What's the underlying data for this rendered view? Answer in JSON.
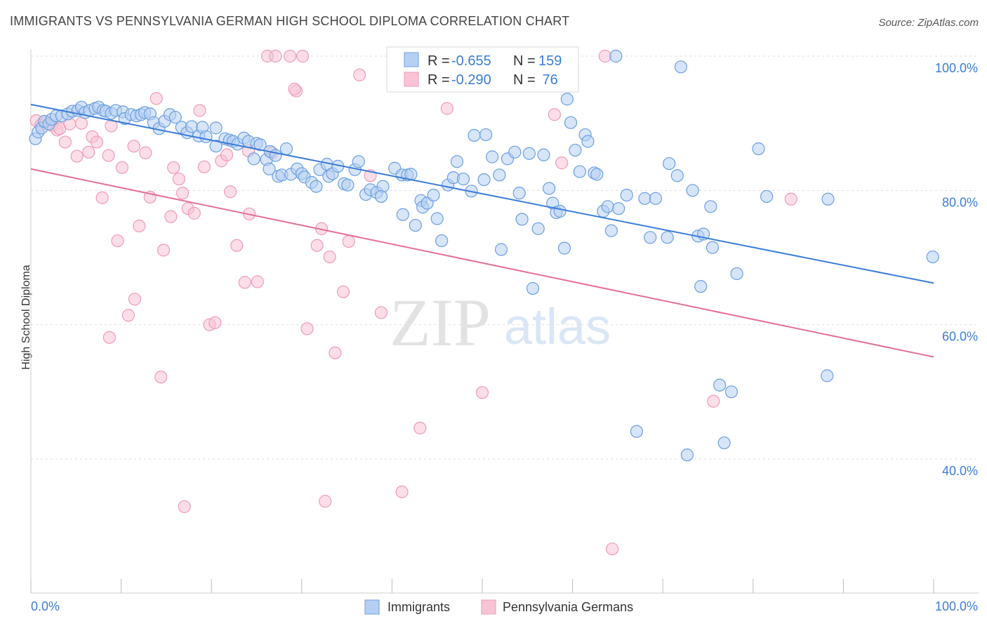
{
  "header": {
    "title": "IMMIGRANTS VS PENNSYLVANIA GERMAN HIGH SCHOOL DIPLOMA CORRELATION CHART",
    "source": "Source: ZipAtlas.com"
  },
  "watermark": {
    "zip": "ZIP",
    "atlas": "atlas"
  },
  "colors": {
    "blue": "#3b7dd8",
    "blue_fill": "#b6d0f3",
    "blue_stroke": "#6a9fe0",
    "pink": "#e46e9a",
    "pink_fill": "#f8c3d5",
    "pink_stroke": "#ee9bb8",
    "grid": "#dddddd",
    "tick_text": "#3b7dd8"
  },
  "stats": [
    {
      "r_label": "R =",
      "r_value": "-0.655",
      "n_label": "N =",
      "n_value": "159"
    },
    {
      "r_label": "R =",
      "r_value": "-0.290",
      "n_label": "N =",
      "n_value": " 76"
    }
  ],
  "chart_data": {
    "type": "scatter",
    "title": "IMMIGRANTS VS PENNSYLVANIA GERMAN HIGH SCHOOL DIPLOMA CORRELATION CHART",
    "xlabel": "",
    "ylabel": "High School Diploma",
    "xlim": [
      0,
      100
    ],
    "ylim": [
      20,
      102
    ],
    "x_tick_labels": [
      "0.0%",
      "100.0%"
    ],
    "y_ticks": [
      40,
      60,
      80,
      100
    ],
    "y_tick_labels": [
      "40.0%",
      "60.0%",
      "80.0%",
      "100.0%"
    ],
    "grid": true,
    "legend_position": "bottom-center",
    "series": [
      {
        "name": "Immigrants",
        "color": "#3b7dd8",
        "r": -0.655,
        "n": 159,
        "trend": {
          "x": [
            0,
            100
          ],
          "y": [
            92.8,
            66.2
          ]
        },
        "points": [
          [
            0.5,
            87.7
          ],
          [
            0.8,
            88.7
          ],
          [
            1.2,
            89.3
          ],
          [
            1.5,
            90.3
          ],
          [
            2,
            89.9
          ],
          [
            2.3,
            90.6
          ],
          [
            2.8,
            91.1
          ],
          [
            3.4,
            91.1
          ],
          [
            4.1,
            91.4
          ],
          [
            4.6,
            91.8
          ],
          [
            5.2,
            91.9
          ],
          [
            5.6,
            92.4
          ],
          [
            6,
            91.6
          ],
          [
            6.5,
            91.9
          ],
          [
            7.1,
            92.2
          ],
          [
            7.5,
            92.4
          ],
          [
            8,
            91.9
          ],
          [
            8.3,
            91.8
          ],
          [
            8.9,
            91.5
          ],
          [
            9.4,
            91.9
          ],
          [
            10.2,
            91.7
          ],
          [
            10.4,
            90.7
          ],
          [
            11.1,
            91.3
          ],
          [
            11.7,
            91.1
          ],
          [
            12.2,
            91.3
          ],
          [
            12.6,
            91.6
          ],
          [
            13.2,
            91.4
          ],
          [
            13.6,
            90.1
          ],
          [
            14.2,
            89.2
          ],
          [
            14.8,
            90.3
          ],
          [
            15.4,
            91.3
          ],
          [
            16,
            90.9
          ],
          [
            16.7,
            89.4
          ],
          [
            17.3,
            88.6
          ],
          [
            17.8,
            89.5
          ],
          [
            18.6,
            88.1
          ],
          [
            19,
            89.4
          ],
          [
            19.4,
            88
          ],
          [
            20.5,
            86.6
          ],
          [
            20.5,
            89.3
          ],
          [
            21.5,
            87.7
          ],
          [
            22,
            87.5
          ],
          [
            22.4,
            87.3
          ],
          [
            22.9,
            86.9
          ],
          [
            23.6,
            87.8
          ],
          [
            24.1,
            87.3
          ],
          [
            24.7,
            84.7
          ],
          [
            25,
            87
          ],
          [
            25.4,
            86.8
          ],
          [
            26.1,
            84.6
          ],
          [
            26.4,
            83.2
          ],
          [
            26.5,
            85.8
          ],
          [
            27.1,
            85.2
          ],
          [
            27.4,
            82.1
          ],
          [
            27.8,
            82.3
          ],
          [
            28.3,
            86.2
          ],
          [
            28.8,
            82.4
          ],
          [
            29.5,
            83.2
          ],
          [
            30,
            82.5
          ],
          [
            30.3,
            82
          ],
          [
            31.1,
            81.2
          ],
          [
            31.6,
            80.6
          ],
          [
            32,
            83.1
          ],
          [
            32.8,
            83.9
          ],
          [
            33,
            82.1
          ],
          [
            33.4,
            82.5
          ],
          [
            34,
            83.6
          ],
          [
            34.7,
            81
          ],
          [
            35.1,
            80.8
          ],
          [
            35.9,
            83.1
          ],
          [
            36.3,
            84.3
          ],
          [
            37.1,
            79.4
          ],
          [
            37.6,
            80.1
          ],
          [
            38.3,
            79.7
          ],
          [
            39,
            80.6
          ],
          [
            38.8,
            79.1
          ],
          [
            40.3,
            83.3
          ],
          [
            41.1,
            82.3
          ],
          [
            41.7,
            82.3
          ],
          [
            42.1,
            82.4
          ],
          [
            41.2,
            76.4
          ],
          [
            42.6,
            74.8
          ],
          [
            43.2,
            78.5
          ],
          [
            43.4,
            77.5
          ],
          [
            43.9,
            78.1
          ],
          [
            44.6,
            79.3
          ],
          [
            45,
            75.8
          ],
          [
            45.5,
            72.5
          ],
          [
            46.2,
            80.8
          ],
          [
            46.8,
            81.9
          ],
          [
            47.2,
            84.3
          ],
          [
            47.9,
            81.7
          ],
          [
            48.8,
            79.9
          ],
          [
            49.1,
            88.2
          ],
          [
            50.2,
            81.6
          ],
          [
            50.4,
            88.3
          ],
          [
            51.1,
            85
          ],
          [
            51.9,
            82.3
          ],
          [
            52.1,
            71.2
          ],
          [
            52.8,
            84.7
          ],
          [
            53.6,
            85.7
          ],
          [
            54.1,
            79.6
          ],
          [
            54.4,
            75.7
          ],
          [
            55.2,
            85.5
          ],
          [
            55.6,
            65.4
          ],
          [
            56.2,
            74.3
          ],
          [
            56.8,
            85.3
          ],
          [
            57.4,
            80.3
          ],
          [
            57.8,
            78.1
          ],
          [
            58.2,
            76.7
          ],
          [
            58.6,
            76.9
          ],
          [
            59.1,
            71.4
          ],
          [
            59.4,
            93.6
          ],
          [
            59.8,
            90.1
          ],
          [
            60.3,
            86
          ],
          [
            60.8,
            82.8
          ],
          [
            61.4,
            88.3
          ],
          [
            61.7,
            87.3
          ],
          [
            62.4,
            82.6
          ],
          [
            62.7,
            82.4
          ],
          [
            63.4,
            76.9
          ],
          [
            63.9,
            77.6
          ],
          [
            64.3,
            74
          ],
          [
            64.8,
            100
          ],
          [
            65.1,
            77.3
          ],
          [
            66,
            79.3
          ],
          [
            67.1,
            44.1
          ],
          [
            68,
            78.8
          ],
          [
            68.6,
            73
          ],
          [
            69.2,
            78.8
          ],
          [
            70.5,
            73
          ],
          [
            70.7,
            84
          ],
          [
            71.6,
            82.2
          ],
          [
            72,
            98.4
          ],
          [
            72.7,
            40.6
          ],
          [
            73.3,
            80
          ],
          [
            73.9,
            73.2
          ],
          [
            74.2,
            65.7
          ],
          [
            74.5,
            73.5
          ],
          [
            75.3,
            77.6
          ],
          [
            75.5,
            71.5
          ],
          [
            76.3,
            51
          ],
          [
            76.8,
            42.4
          ],
          [
            77.6,
            50
          ],
          [
            78.2,
            67.6
          ],
          [
            80.6,
            86.2
          ],
          [
            81.5,
            79.1
          ],
          [
            88.2,
            52.4
          ],
          [
            88.3,
            78.7
          ],
          [
            99.9,
            70.1
          ]
        ]
      },
      {
        "name": "Pennsylvania Germans",
        "color": "#e46e9a",
        "r": -0.29,
        "n": 76,
        "trend": {
          "x": [
            0,
            100
          ],
          "y": [
            83.2,
            55.2
          ]
        },
        "points": [
          [
            0.6,
            90.4
          ],
          [
            1.1,
            89.7
          ],
          [
            1.7,
            90.2
          ],
          [
            2.3,
            89.7
          ],
          [
            2.9,
            89
          ],
          [
            3.2,
            89.2
          ],
          [
            3.8,
            87.2
          ],
          [
            4.3,
            89.9
          ],
          [
            5.1,
            85.1
          ],
          [
            5.6,
            90
          ],
          [
            6.4,
            85.7
          ],
          [
            6.8,
            88
          ],
          [
            7.3,
            87.2
          ],
          [
            7.9,
            78.9
          ],
          [
            8.6,
            85.2
          ],
          [
            8.9,
            89.6
          ],
          [
            9.6,
            72.5
          ],
          [
            10.1,
            83.4
          ],
          [
            11.4,
            86.6
          ],
          [
            12,
            74.7
          ],
          [
            12.7,
            85.6
          ],
          [
            13.2,
            79
          ],
          [
            13.9,
            93.7
          ],
          [
            14.4,
            52.2
          ],
          [
            15.5,
            76.1
          ],
          [
            15.8,
            83.4
          ],
          [
            16.4,
            81.7
          ],
          [
            16.8,
            79.6
          ],
          [
            17.4,
            77.3
          ],
          [
            18.1,
            76.6
          ],
          [
            18.7,
            91.9
          ],
          [
            19.2,
            83.5
          ],
          [
            19.8,
            60
          ],
          [
            20.4,
            60.3
          ],
          [
            21.1,
            84.4
          ],
          [
            21.7,
            85.3
          ],
          [
            22.1,
            79.8
          ],
          [
            22.8,
            71.8
          ],
          [
            23.7,
            66.3
          ],
          [
            24.2,
            76.5
          ],
          [
            25.1,
            66.4
          ],
          [
            26.2,
            100
          ],
          [
            27.1,
            100
          ],
          [
            28.7,
            100
          ],
          [
            29.4,
            94.8
          ],
          [
            30.1,
            100
          ],
          [
            30.6,
            59.4
          ],
          [
            31.7,
            71.8
          ],
          [
            32.2,
            74.3
          ],
          [
            32.6,
            33.7
          ],
          [
            33.1,
            70.1
          ],
          [
            33.7,
            55.8
          ],
          [
            34.6,
            64.9
          ],
          [
            35.2,
            72.4
          ],
          [
            36.4,
            97.2
          ],
          [
            38.8,
            61.8
          ],
          [
            41.1,
            35.1
          ],
          [
            43.1,
            44.6
          ],
          [
            46.1,
            92.2
          ],
          [
            50,
            49.9
          ],
          [
            58,
            91.3
          ],
          [
            58.8,
            84.1
          ],
          [
            63.6,
            100
          ],
          [
            64.4,
            26.6
          ],
          [
            75.6,
            48.6
          ],
          [
            84.2,
            78.7
          ],
          [
            17,
            32.9
          ],
          [
            11.5,
            63.8
          ],
          [
            10.8,
            61.4
          ],
          [
            8.7,
            58.1
          ],
          [
            14.7,
            71.1
          ],
          [
            24.1,
            85.9
          ],
          [
            26.7,
            85.6
          ],
          [
            29.2,
            95.1
          ],
          [
            37.6,
            82.2
          ],
          [
            55,
            100
          ]
        ]
      }
    ]
  }
}
